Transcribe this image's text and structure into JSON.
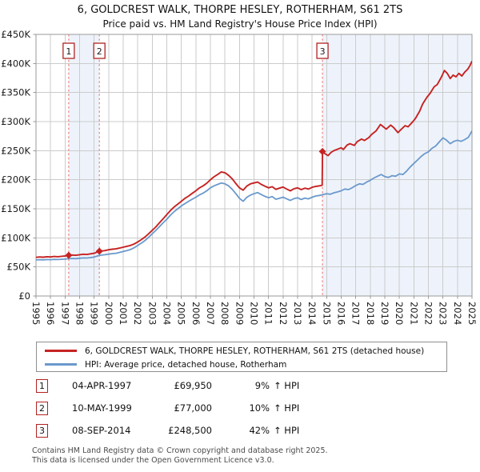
{
  "chart_data": {
    "type": "line",
    "title": "6, GOLDCREST WALK, THORPE HESLEY, ROTHERHAM, S61 2TS",
    "subtitle": "Price paid vs. HM Land Registry's House Price Index (HPI)",
    "x_axis": {
      "min": 1995,
      "max": 2025,
      "tick_years": [
        1995,
        1996,
        1997,
        1998,
        1999,
        2000,
        2001,
        2002,
        2003,
        2004,
        2005,
        2006,
        2007,
        2008,
        2009,
        2010,
        2011,
        2012,
        2013,
        2014,
        2015,
        2016,
        2017,
        2018,
        2019,
        2020,
        2021,
        2022,
        2023,
        2024,
        2025
      ]
    },
    "y_axis": {
      "min": 0,
      "max": 450000,
      "ticks": [
        {
          "value": 0,
          "label": "£0"
        },
        {
          "value": 50000,
          "label": "£50K"
        },
        {
          "value": 100000,
          "label": "£100K"
        },
        {
          "value": 150000,
          "label": "£150K"
        },
        {
          "value": 200000,
          "label": "£200K"
        },
        {
          "value": 250000,
          "label": "£250K"
        },
        {
          "value": 300000,
          "label": "£300K"
        },
        {
          "value": 350000,
          "label": "£350K"
        },
        {
          "value": 400000,
          "label": "£400K"
        },
        {
          "value": 450000,
          "label": "£450K"
        }
      ]
    },
    "grid": true,
    "legend_position": "below",
    "series": [
      {
        "name": "6, GOLDCREST WALK, THORPE HESLEY, ROTHERHAM, S61 2TS (detached house)",
        "color": "#c62222",
        "points": [
          [
            1995.0,
            66500
          ],
          [
            1995.25,
            67200
          ],
          [
            1995.5,
            66800
          ],
          [
            1995.75,
            67500
          ],
          [
            1996.0,
            67200
          ],
          [
            1996.25,
            68000
          ],
          [
            1996.5,
            67600
          ],
          [
            1996.75,
            68300
          ],
          [
            1997.0,
            68800
          ],
          [
            1997.25,
            69950
          ],
          [
            1997.5,
            70400
          ],
          [
            1997.75,
            70100
          ],
          [
            1998.0,
            71000
          ],
          [
            1998.25,
            71800
          ],
          [
            1998.5,
            71400
          ],
          [
            1998.75,
            72500
          ],
          [
            1999.0,
            73500
          ],
          [
            1999.36,
            77000
          ],
          [
            1999.5,
            77400
          ],
          [
            1999.75,
            78200
          ],
          [
            2000.0,
            79500
          ],
          [
            2000.25,
            80500
          ],
          [
            2000.5,
            81000
          ],
          [
            2000.75,
            82500
          ],
          [
            2001.0,
            84000
          ],
          [
            2001.25,
            85500
          ],
          [
            2001.5,
            87000
          ],
          [
            2001.75,
            89500
          ],
          [
            2002.0,
            93000
          ],
          [
            2002.25,
            97000
          ],
          [
            2002.5,
            101500
          ],
          [
            2002.75,
            107000
          ],
          [
            2003.0,
            113000
          ],
          [
            2003.25,
            119000
          ],
          [
            2003.5,
            126000
          ],
          [
            2003.75,
            133000
          ],
          [
            2004.0,
            140000
          ],
          [
            2004.25,
            147000
          ],
          [
            2004.5,
            153000
          ],
          [
            2004.75,
            158000
          ],
          [
            2005.0,
            163000
          ],
          [
            2005.25,
            168000
          ],
          [
            2005.5,
            172000
          ],
          [
            2005.75,
            176500
          ],
          [
            2006.0,
            181000
          ],
          [
            2006.25,
            186000
          ],
          [
            2006.5,
            189500
          ],
          [
            2006.75,
            194000
          ],
          [
            2007.0,
            200000
          ],
          [
            2007.25,
            205000
          ],
          [
            2007.5,
            209000
          ],
          [
            2007.75,
            213500
          ],
          [
            2008.0,
            212000
          ],
          [
            2008.25,
            207500
          ],
          [
            2008.5,
            201500
          ],
          [
            2008.75,
            193500
          ],
          [
            2009.0,
            186000
          ],
          [
            2009.25,
            182000
          ],
          [
            2009.5,
            189000
          ],
          [
            2009.75,
            193000
          ],
          [
            2010.0,
            194500
          ],
          [
            2010.25,
            196000
          ],
          [
            2010.5,
            192000
          ],
          [
            2010.75,
            189000
          ],
          [
            2011.0,
            186000
          ],
          [
            2011.25,
            188000
          ],
          [
            2011.5,
            183500
          ],
          [
            2011.75,
            185500
          ],
          [
            2012.0,
            187500
          ],
          [
            2012.25,
            184000
          ],
          [
            2012.5,
            181000
          ],
          [
            2012.75,
            184500
          ],
          [
            2013.0,
            186000
          ],
          [
            2013.25,
            183000
          ],
          [
            2013.5,
            185500
          ],
          [
            2013.75,
            184000
          ],
          [
            2014.0,
            187000
          ],
          [
            2014.25,
            188500
          ],
          [
            2014.5,
            189500
          ],
          [
            2014.69,
            190500
          ],
          [
            2014.71,
            248500
          ],
          [
            2014.9,
            244500
          ],
          [
            2015.1,
            241500
          ],
          [
            2015.3,
            247000
          ],
          [
            2015.5,
            250000
          ],
          [
            2015.75,
            252500
          ],
          [
            2016.0,
            255000
          ],
          [
            2016.15,
            252000
          ],
          [
            2016.4,
            259500
          ],
          [
            2016.6,
            262000
          ],
          [
            2016.9,
            259000
          ],
          [
            2017.1,
            265500
          ],
          [
            2017.4,
            270000
          ],
          [
            2017.6,
            267500
          ],
          [
            2017.9,
            272500
          ],
          [
            2018.1,
            278000
          ],
          [
            2018.4,
            284000
          ],
          [
            2018.7,
            295000
          ],
          [
            2018.9,
            291000
          ],
          [
            2019.1,
            287000
          ],
          [
            2019.4,
            294000
          ],
          [
            2019.6,
            290000
          ],
          [
            2019.9,
            281000
          ],
          [
            2020.1,
            286000
          ],
          [
            2020.4,
            293000
          ],
          [
            2020.6,
            291000
          ],
          [
            2020.9,
            299000
          ],
          [
            2021.1,
            305000
          ],
          [
            2021.4,
            318000
          ],
          [
            2021.6,
            330000
          ],
          [
            2021.9,
            342000
          ],
          [
            2022.1,
            348000
          ],
          [
            2022.4,
            360000
          ],
          [
            2022.6,
            363500
          ],
          [
            2022.9,
            377000
          ],
          [
            2023.1,
            388000
          ],
          [
            2023.3,
            383000
          ],
          [
            2023.5,
            374000
          ],
          [
            2023.7,
            380000
          ],
          [
            2023.9,
            377000
          ],
          [
            2024.1,
            383000
          ],
          [
            2024.3,
            378500
          ],
          [
            2024.5,
            385000
          ],
          [
            2024.7,
            390000
          ],
          [
            2024.85,
            396000
          ],
          [
            2025.0,
            404000
          ]
        ]
      },
      {
        "name": "HPI: Average price, detached house, Rotherham",
        "color": "#6a99cc",
        "points": [
          [
            1995.0,
            62000
          ],
          [
            1995.25,
            62500
          ],
          [
            1995.5,
            62200
          ],
          [
            1995.75,
            62800
          ],
          [
            1996.0,
            62500
          ],
          [
            1996.25,
            63000
          ],
          [
            1996.5,
            62800
          ],
          [
            1996.75,
            63200
          ],
          [
            1997.0,
            63500
          ],
          [
            1997.25,
            64200
          ],
          [
            1997.5,
            64500
          ],
          [
            1997.75,
            64300
          ],
          [
            1998.0,
            65000
          ],
          [
            1998.25,
            65500
          ],
          [
            1998.5,
            65300
          ],
          [
            1998.75,
            66000
          ],
          [
            1999.0,
            67000
          ],
          [
            1999.36,
            70000
          ],
          [
            1999.5,
            70300
          ],
          [
            1999.75,
            71000
          ],
          [
            2000.0,
            72000
          ],
          [
            2000.25,
            73000
          ],
          [
            2000.5,
            73500
          ],
          [
            2000.75,
            75000
          ],
          [
            2001.0,
            76500
          ],
          [
            2001.25,
            78000
          ],
          [
            2001.5,
            80000
          ],
          [
            2001.75,
            83000
          ],
          [
            2002.0,
            87000
          ],
          [
            2002.25,
            91000
          ],
          [
            2002.5,
            95500
          ],
          [
            2002.75,
            101000
          ],
          [
            2003.0,
            107000
          ],
          [
            2003.25,
            113000
          ],
          [
            2003.5,
            119500
          ],
          [
            2003.75,
            126000
          ],
          [
            2004.0,
            132000
          ],
          [
            2004.25,
            139000
          ],
          [
            2004.5,
            145000
          ],
          [
            2004.75,
            150000
          ],
          [
            2005.0,
            155000
          ],
          [
            2005.25,
            159000
          ],
          [
            2005.5,
            163000
          ],
          [
            2005.75,
            166500
          ],
          [
            2006.0,
            170000
          ],
          [
            2006.25,
            174000
          ],
          [
            2006.5,
            177000
          ],
          [
            2006.75,
            181000
          ],
          [
            2007.0,
            186000
          ],
          [
            2007.25,
            189500
          ],
          [
            2007.5,
            192000
          ],
          [
            2007.75,
            194500
          ],
          [
            2008.0,
            193000
          ],
          [
            2008.25,
            189500
          ],
          [
            2008.5,
            183500
          ],
          [
            2008.75,
            176000
          ],
          [
            2009.0,
            168000
          ],
          [
            2009.25,
            163000
          ],
          [
            2009.5,
            169500
          ],
          [
            2009.75,
            173500
          ],
          [
            2010.0,
            176000
          ],
          [
            2010.25,
            178000
          ],
          [
            2010.5,
            174500
          ],
          [
            2010.75,
            171500
          ],
          [
            2011.0,
            169000
          ],
          [
            2011.25,
            171000
          ],
          [
            2011.5,
            166500
          ],
          [
            2011.75,
            168000
          ],
          [
            2012.0,
            170000
          ],
          [
            2012.25,
            167000
          ],
          [
            2012.5,
            164500
          ],
          [
            2012.75,
            167500
          ],
          [
            2013.0,
            169000
          ],
          [
            2013.25,
            166000
          ],
          [
            2013.5,
            168500
          ],
          [
            2013.75,
            167000
          ],
          [
            2014.0,
            170000
          ],
          [
            2014.25,
            172000
          ],
          [
            2014.5,
            173000
          ],
          [
            2014.75,
            174500
          ],
          [
            2015.0,
            176000
          ],
          [
            2015.25,
            175000
          ],
          [
            2015.5,
            177500
          ],
          [
            2015.75,
            179000
          ],
          [
            2016.0,
            181000
          ],
          [
            2016.25,
            184000
          ],
          [
            2016.5,
            183000
          ],
          [
            2016.75,
            186000
          ],
          [
            2017.0,
            190000
          ],
          [
            2017.25,
            193000
          ],
          [
            2017.5,
            192000
          ],
          [
            2017.75,
            196000
          ],
          [
            2018.0,
            199000
          ],
          [
            2018.25,
            203000
          ],
          [
            2018.5,
            206000
          ],
          [
            2018.75,
            209000
          ],
          [
            2019.0,
            205500
          ],
          [
            2019.25,
            204000
          ],
          [
            2019.5,
            207000
          ],
          [
            2019.75,
            206000
          ],
          [
            2020.0,
            210000
          ],
          [
            2020.25,
            209000
          ],
          [
            2020.5,
            215000
          ],
          [
            2020.75,
            222000
          ],
          [
            2021.0,
            228000
          ],
          [
            2021.25,
            234000
          ],
          [
            2021.5,
            240000
          ],
          [
            2021.75,
            245000
          ],
          [
            2022.0,
            248000
          ],
          [
            2022.25,
            254000
          ],
          [
            2022.5,
            258000
          ],
          [
            2022.75,
            265000
          ],
          [
            2023.0,
            272000
          ],
          [
            2023.25,
            268000
          ],
          [
            2023.5,
            262000
          ],
          [
            2023.75,
            266000
          ],
          [
            2024.0,
            268000
          ],
          [
            2024.25,
            266000
          ],
          [
            2024.5,
            269000
          ],
          [
            2024.75,
            273000
          ],
          [
            2025.0,
            284000
          ]
        ]
      }
    ],
    "sale_markers": [
      {
        "label": "1",
        "year": 1997.25,
        "price": 69950
      },
      {
        "label": "2",
        "year": 1999.36,
        "price": 77000
      },
      {
        "label": "3",
        "year": 2014.71,
        "price": 248500
      }
    ],
    "shaded_periods": [
      [
        1997.25,
        1999.36
      ],
      [
        2014.71,
        2025.0
      ]
    ],
    "colors": {
      "grid": "#cbcbcb",
      "border": "#999999",
      "shade": "#eef3fb",
      "sale_line": "#f08080",
      "badge_border": "#b22222",
      "text": "#1a1a1a"
    }
  },
  "transactions": [
    {
      "num": "1",
      "date": "04-APR-1997",
      "price": "£69,950",
      "pct": "9%",
      "vs": "↑ HPI"
    },
    {
      "num": "2",
      "date": "10-MAY-1999",
      "price": "£77,000",
      "pct": "10%",
      "vs": "↑ HPI"
    },
    {
      "num": "3",
      "date": "08-SEP-2014",
      "price": "£248,500",
      "pct": "42%",
      "vs": "↑ HPI"
    }
  ],
  "footer": {
    "line1": "Contains HM Land Registry data © Crown copyright and database right 2025.",
    "line2": "This data is licensed under the Open Government Licence v3.0."
  }
}
